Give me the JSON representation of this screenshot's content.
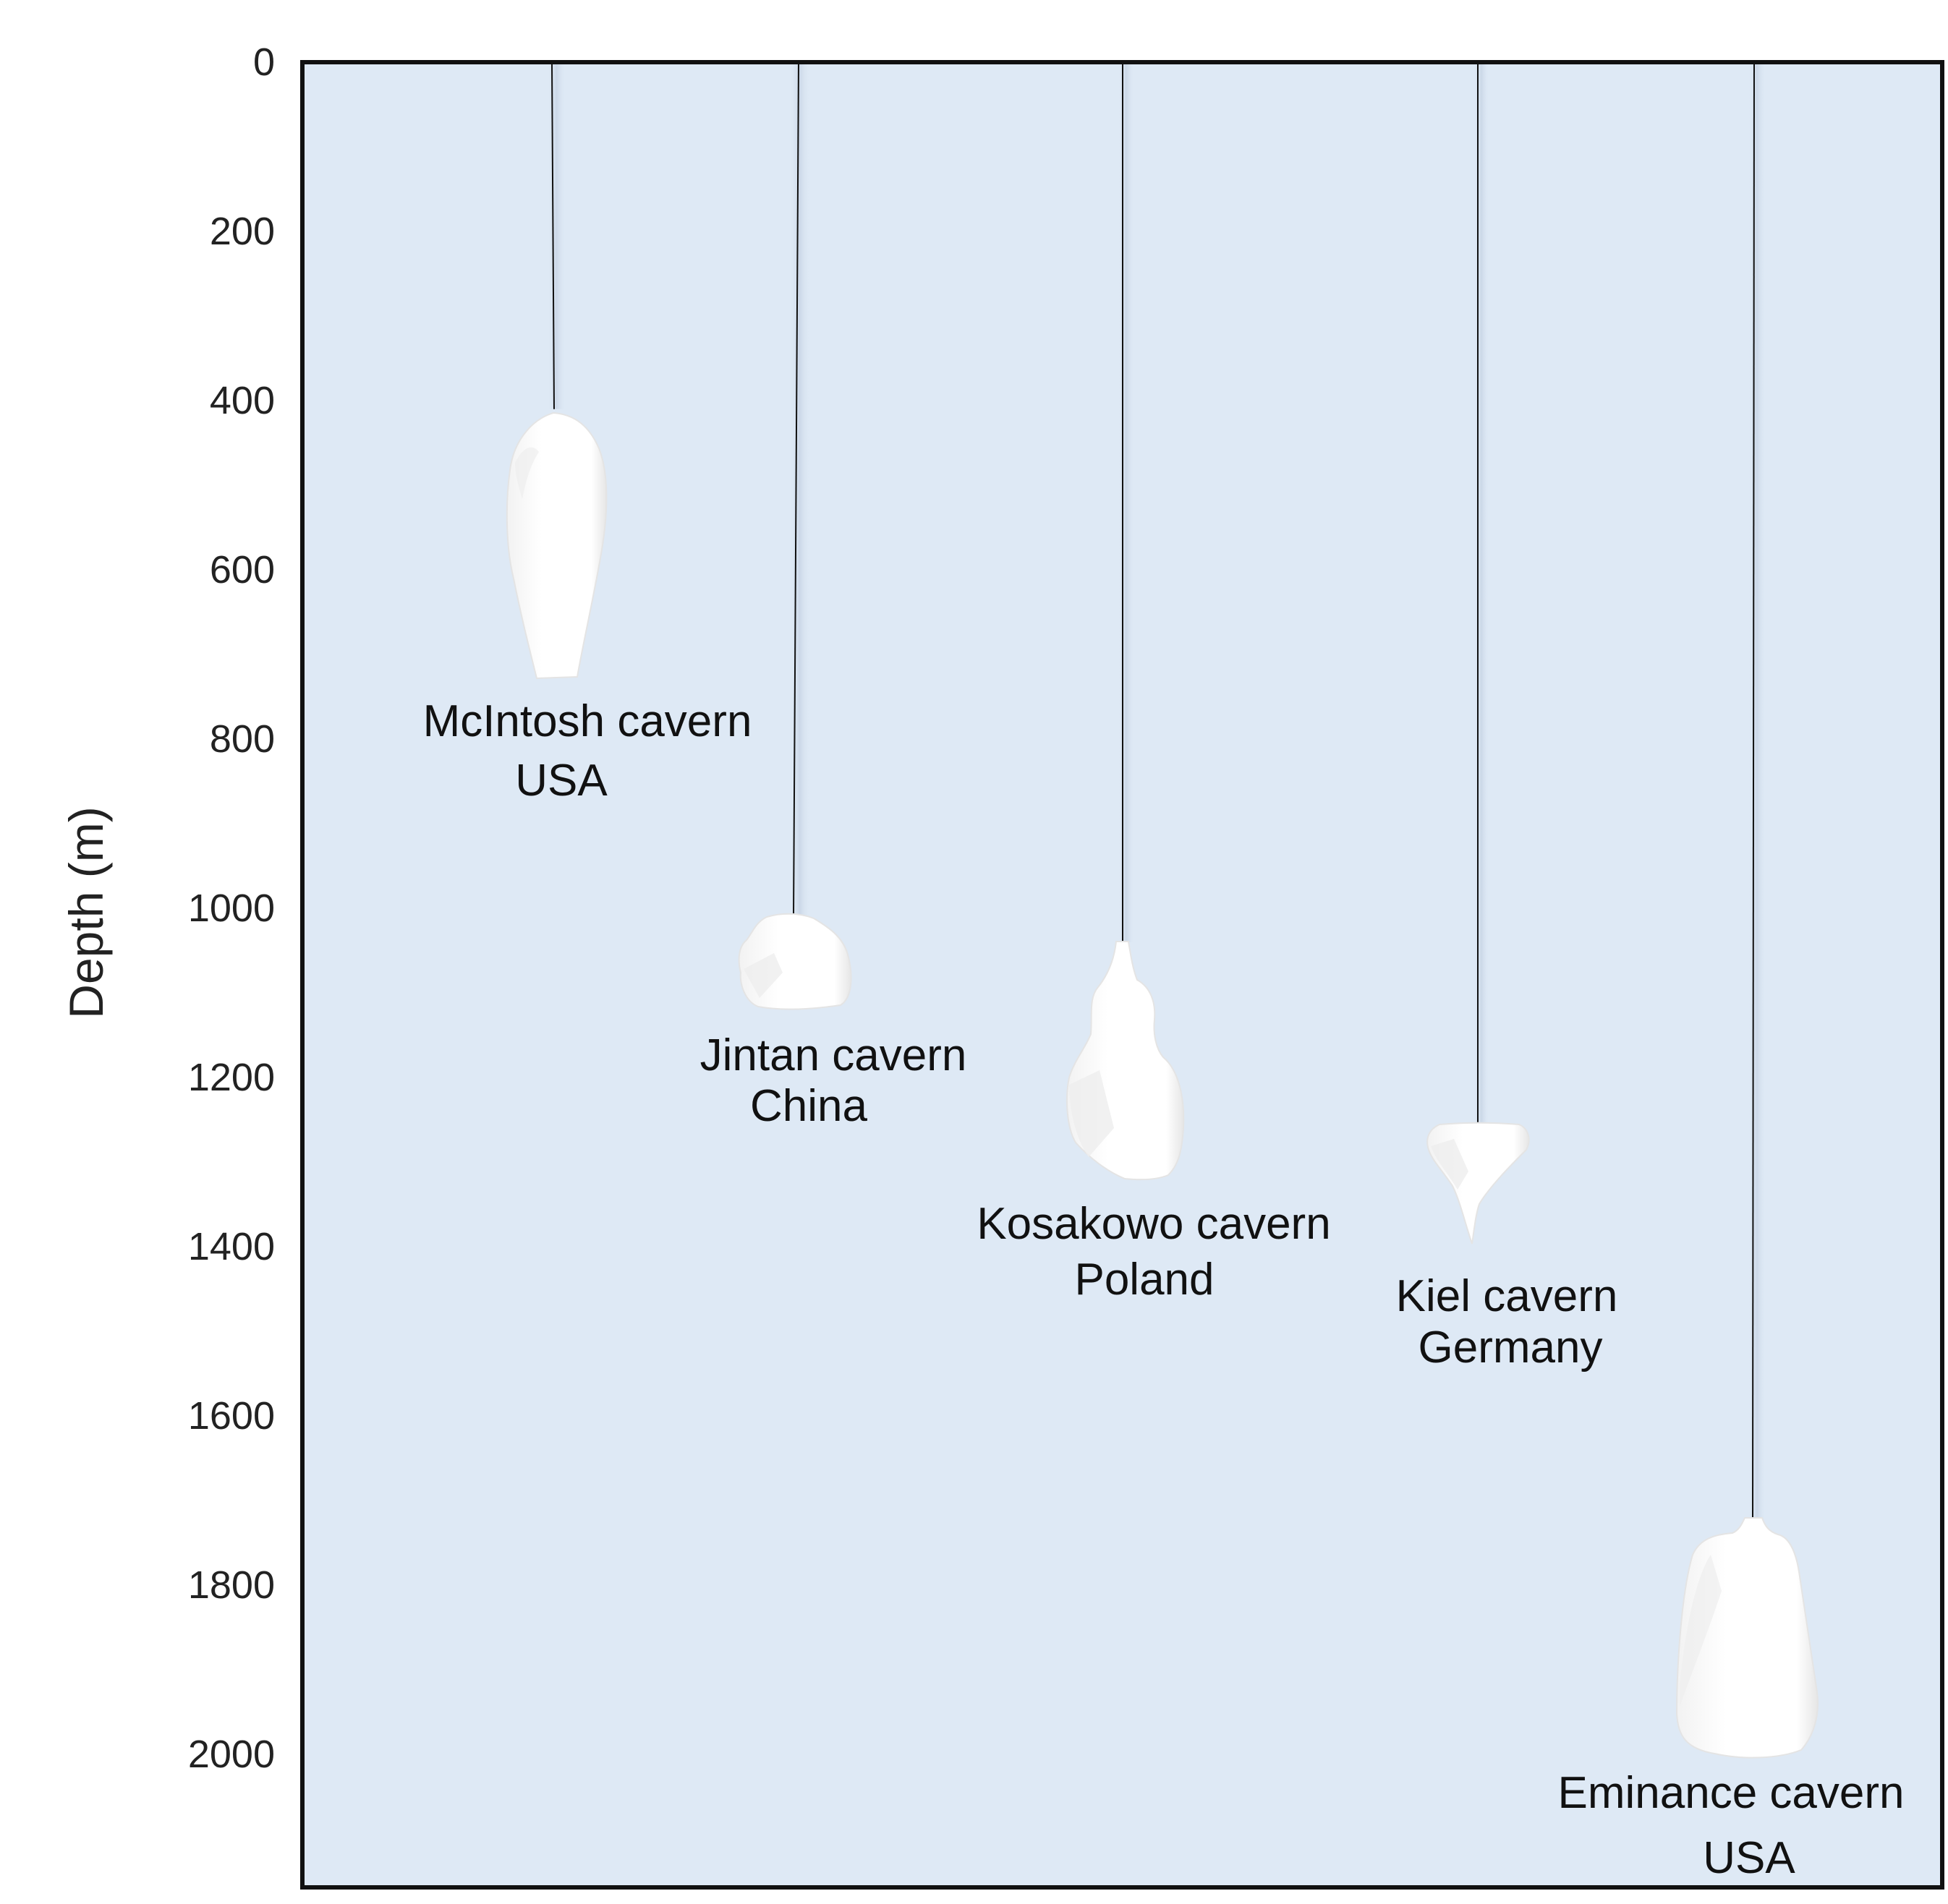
{
  "diagram": {
    "y_axis": {
      "label": "Depth (m)",
      "ticks": [
        0,
        200,
        400,
        600,
        800,
        1000,
        1200,
        1400,
        1600,
        1800,
        2000
      ],
      "range": [
        0,
        2150
      ],
      "direction": "increasing-downward"
    },
    "background_color": "#dee9f5",
    "cavern_color": "#ffffff",
    "border_color": "#111111",
    "caverns": [
      {
        "name": "McIntosh cavern",
        "country": "USA",
        "top_depth": 410,
        "bottom_depth": 725
      },
      {
        "name": "Jintan cavern",
        "country": "China",
        "top_depth": 1010,
        "bottom_depth": 1110
      },
      {
        "name": "Kosakowo cavern",
        "country": "Poland",
        "top_depth": 1040,
        "bottom_depth": 1320
      },
      {
        "name": "Kiel cavern",
        "country": "Germany",
        "top_depth": 1260,
        "bottom_depth": 1400
      },
      {
        "name": "Eminance cavern",
        "country": "USA",
        "top_depth": 1725,
        "bottom_depth": 2005
      }
    ]
  }
}
